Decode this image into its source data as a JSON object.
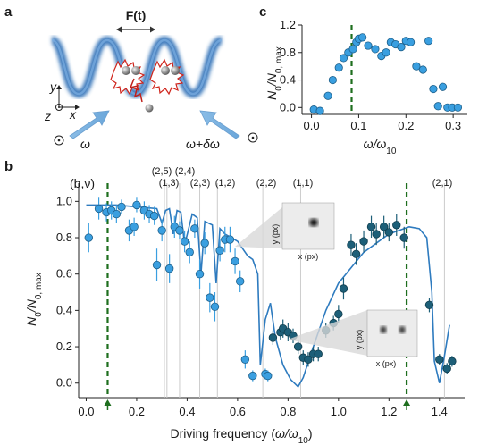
{
  "panel_a": {
    "label": "a",
    "force_label": "F(t)",
    "axis_y": "y",
    "axis_z": "z",
    "axis_x": "x",
    "beam_left": "ω",
    "beam_right": "ω+δω",
    "colors": {
      "lattice": "#2a6db5",
      "beam": "#7fb2e0",
      "atom": "#888888",
      "excite": "#d0241b"
    }
  },
  "chart_data": [
    {
      "id": "panel-c",
      "label": "c",
      "type": "scatter",
      "xlabel": "ω/ω10",
      "ylabel": "N0/N0, max",
      "xlim": [
        -0.02,
        0.33
      ],
      "ylim": [
        -0.1,
        1.2
      ],
      "xticks": [
        "0.0",
        "0.1",
        "0.2",
        "0.3"
      ],
      "yticks": [
        "0.0",
        "0.4",
        "0.8",
        "1.2"
      ],
      "vline": 0.085,
      "x": [
        0.005,
        0.018,
        0.035,
        0.045,
        0.058,
        0.068,
        0.078,
        0.088,
        0.095,
        0.1,
        0.108,
        0.12,
        0.135,
        0.148,
        0.158,
        0.168,
        0.178,
        0.19,
        0.2,
        0.21,
        0.222,
        0.236,
        0.248,
        0.258,
        0.268,
        0.278,
        0.288,
        0.298,
        0.31
      ],
      "y": [
        -0.03,
        -0.05,
        0.17,
        0.4,
        0.58,
        0.72,
        0.8,
        0.85,
        0.95,
        1.0,
        1.02,
        0.9,
        0.85,
        0.75,
        0.8,
        0.95,
        0.92,
        0.88,
        0.97,
        0.95,
        0.6,
        0.55,
        0.97,
        0.27,
        0.02,
        0.3,
        0.0,
        0.0,
        0.0
      ]
    },
    {
      "id": "panel-b",
      "label": "b",
      "type": "scatter",
      "xlabel": "Driving frequency (ω/ω10)",
      "ylabel": "N0/N0, max",
      "xlim": [
        -0.03,
        1.5
      ],
      "ylim": [
        -0.08,
        1.1
      ],
      "xticks": [
        "0.0",
        "0.2",
        "0.4",
        "0.6",
        "0.8",
        "1.0",
        "1.2",
        "1.4"
      ],
      "yticks": [
        "0.0",
        "0.2",
        "0.4",
        "0.6",
        "0.8",
        "1.0"
      ],
      "band_header": "(b,ν)",
      "resonances": [
        {
          "label": "(2,5)",
          "x": 0.31
        },
        {
          "label": "(2,4)",
          "x": 0.37
        },
        {
          "label": "(1,3)",
          "x": 0.32
        },
        {
          "label": "(2,3)",
          "x": 0.45
        },
        {
          "label": "(1,2)",
          "x": 0.52
        },
        {
          "label": "(2,2)",
          "x": 0.7
        },
        {
          "label": "(1,1)",
          "x": 0.85
        },
        {
          "label": "(2,1)",
          "x": 1.42
        }
      ],
      "vlines_dashed": [
        0.085,
        1.27
      ],
      "series": [
        {
          "kind": "points-light",
          "x": [
            0.01,
            0.05,
            0.08,
            0.1,
            0.12,
            0.14,
            0.17,
            0.19,
            0.2,
            0.23,
            0.25,
            0.27,
            0.28,
            0.3,
            0.33,
            0.35,
            0.37,
            0.39,
            0.41,
            0.43,
            0.45,
            0.47,
            0.49,
            0.51,
            0.53,
            0.55,
            0.57,
            0.59,
            0.61,
            0.63,
            0.66,
            0.71,
            0.72
          ],
          "y": [
            0.8,
            0.96,
            0.94,
            0.95,
            0.93,
            0.97,
            0.84,
            0.86,
            0.98,
            0.95,
            0.93,
            0.92,
            0.65,
            0.84,
            0.63,
            0.86,
            0.84,
            0.78,
            0.72,
            0.85,
            0.6,
            0.77,
            0.47,
            0.42,
            0.73,
            0.79,
            0.79,
            0.67,
            0.56,
            0.13,
            0.04,
            0.05,
            0.04
          ],
          "err": [
            0.08,
            0.06,
            0.05,
            0.05,
            0.05,
            0.04,
            0.06,
            0.05,
            0.04,
            0.05,
            0.05,
            0.05,
            0.09,
            0.06,
            0.08,
            0.06,
            0.05,
            0.06,
            0.06,
            0.05,
            0.08,
            0.06,
            0.08,
            0.08,
            0.06,
            0.07,
            0.07,
            0.07,
            0.06,
            0.05,
            0.03,
            0.03,
            0.03
          ]
        },
        {
          "kind": "points-dark",
          "x": [
            0.74,
            0.77,
            0.78,
            0.8,
            0.82,
            0.84,
            0.86,
            0.88,
            0.9,
            0.92,
            0.95,
            0.98,
            1.0,
            1.02,
            1.05,
            1.07,
            1.1,
            1.13,
            1.15,
            1.18,
            1.2,
            1.23,
            1.26,
            1.36,
            1.4,
            1.43,
            1.45
          ],
          "y": [
            0.25,
            0.28,
            0.3,
            0.28,
            0.26,
            0.2,
            0.14,
            0.13,
            0.16,
            0.16,
            0.29,
            0.33,
            0.38,
            0.52,
            0.76,
            0.71,
            0.78,
            0.86,
            0.82,
            0.86,
            0.83,
            0.87,
            0.8,
            0.43,
            0.13,
            0.08,
            0.12
          ],
          "err": [
            0.04,
            0.04,
            0.05,
            0.05,
            0.04,
            0.04,
            0.04,
            0.04,
            0.04,
            0.04,
            0.04,
            0.04,
            0.05,
            0.06,
            0.06,
            0.06,
            0.06,
            0.06,
            0.06,
            0.06,
            0.05,
            0.06,
            0.06,
            0.04,
            0.03,
            0.03,
            0.03
          ]
        }
      ],
      "theory": {
        "x": [
          0.0,
          0.06,
          0.12,
          0.2,
          0.28,
          0.3,
          0.315,
          0.33,
          0.345,
          0.36,
          0.375,
          0.39,
          0.42,
          0.44,
          0.455,
          0.47,
          0.5,
          0.515,
          0.53,
          0.55,
          0.6,
          0.64,
          0.66,
          0.68,
          0.69,
          0.71,
          0.73,
          0.75,
          0.78,
          0.81,
          0.84,
          0.86,
          0.9,
          0.95,
          1.0,
          1.1,
          1.2,
          1.28,
          1.32,
          1.35,
          1.37,
          1.38,
          1.4,
          1.42,
          1.44
        ],
        "y": [
          0.98,
          0.98,
          0.98,
          0.97,
          0.96,
          0.88,
          0.95,
          0.96,
          0.82,
          0.95,
          0.94,
          0.76,
          0.93,
          0.91,
          0.6,
          0.89,
          0.87,
          0.55,
          0.85,
          0.82,
          0.78,
          0.7,
          0.68,
          0.6,
          0.1,
          0.35,
          0.44,
          0.25,
          0.1,
          0.02,
          -0.02,
          0.03,
          0.2,
          0.4,
          0.55,
          0.72,
          0.82,
          0.86,
          0.85,
          0.8,
          0.5,
          0.12,
          0.0,
          0.15,
          0.32
        ]
      }
    }
  ],
  "inset_1": {
    "xlabel": "x (px)",
    "ylabel": "y (px)"
  },
  "inset_2": {
    "xlabel": "x (px)",
    "ylabel": "y (px)"
  },
  "colors": {
    "light": "#3a9fe0",
    "dark": "#1d5f78",
    "theory": "#2e7bbf",
    "dashed": "#1e6e1e",
    "grid": "#cccccc"
  }
}
